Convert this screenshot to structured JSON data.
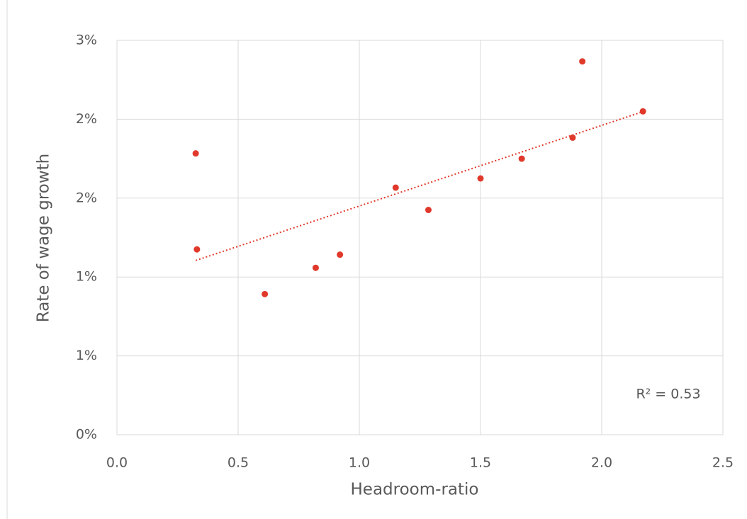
{
  "chart_data": {
    "type": "scatter",
    "x_label": "Headroom-ratio",
    "y_label": "Rate of wage growth",
    "annotation": "R² = 0.53",
    "x": [
      0.325,
      0.33,
      0.61,
      0.82,
      0.92,
      1.15,
      1.285,
      1.5,
      1.67,
      1.88,
      1.92,
      2.17
    ],
    "values": [
      2.14,
      1.41,
      1.07,
      1.27,
      1.37,
      1.88,
      1.71,
      1.95,
      2.1,
      2.26,
      2.84,
      2.46
    ],
    "color": "#e0392b",
    "trendline": true,
    "grid": true,
    "xlim": [
      0,
      2.5
    ],
    "xticks": [
      {
        "value": 0,
        "label": "0.0"
      },
      0.5,
      {
        "value": 1,
        "label": "1.0"
      },
      1.5,
      {
        "value": 2,
        "label": "2.0"
      },
      2.5
    ],
    "ylim": [
      0,
      3
    ],
    "yticks": [
      {
        "value": 0,
        "label": "0%"
      },
      {
        "value": 0.6,
        "label": "1%"
      },
      {
        "value": 1.2,
        "label": "1%"
      },
      {
        "value": 1.8,
        "label": "2%"
      },
      {
        "value": 2.4,
        "label": "2%"
      },
      {
        "value": 3,
        "label": "3%"
      }
    ]
  }
}
